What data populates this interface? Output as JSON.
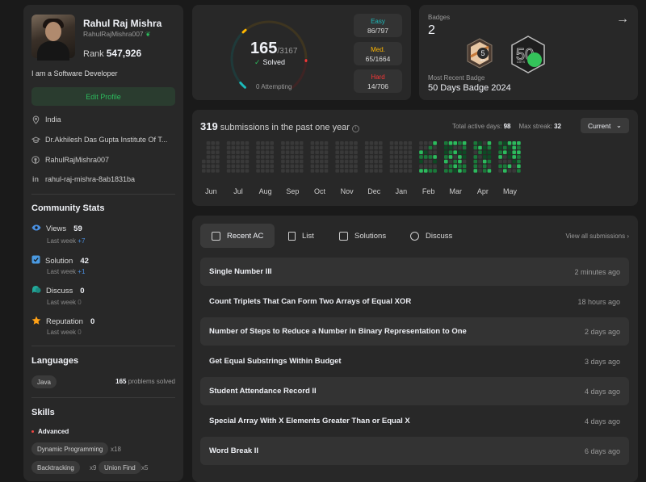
{
  "profile": {
    "name": "Rahul Raj Mishra",
    "handle": "RahulRajMishra007",
    "rank_label": "Rank",
    "rank_value": "547,926",
    "bio": "I am a Software Developer",
    "edit_label": "Edit Profile",
    "location": "India",
    "school": "Dr.Akhilesh Das Gupta Institute Of T...",
    "github": "RahulRajMishra007",
    "linkedin": "rahul-raj-mishra-8ab1831ba"
  },
  "community": {
    "title": "Community Stats",
    "views": {
      "label": "Views",
      "value": "59",
      "sub": "Last week",
      "delta": "+7"
    },
    "solution": {
      "label": "Solution",
      "value": "42",
      "sub": "Last week",
      "delta": "+1"
    },
    "discuss": {
      "label": "Discuss",
      "value": "0",
      "sub": "Last week",
      "delta": "0"
    },
    "reputation": {
      "label": "Reputation",
      "value": "0",
      "sub": "Last week",
      "delta": "0"
    }
  },
  "languages": {
    "title": "Languages",
    "items": [
      {
        "name": "Java",
        "count": "165",
        "suffix": "problems solved"
      }
    ]
  },
  "skills": {
    "title": "Skills",
    "level": "Advanced",
    "items": [
      {
        "name": "Dynamic Programming",
        "count": "x18"
      },
      {
        "name": "Backtracking",
        "count": "x9"
      },
      {
        "name": "Union Find",
        "count": "x5"
      }
    ]
  },
  "solved": {
    "count": "165",
    "total": "/3167",
    "label": "Solved",
    "attempting": "0 Attempting",
    "easy": {
      "name": "Easy",
      "value": "86/797"
    },
    "medium": {
      "name": "Med.",
      "value": "65/1664"
    },
    "hard": {
      "name": "Hard",
      "value": "14/706"
    }
  },
  "badges": {
    "title": "Badges",
    "count": "2",
    "recent_label": "Most Recent Badge",
    "recent_name": "50 Days Badge 2024",
    "badge1": {
      "text_big": "5",
      "text_small": "MAY"
    },
    "badge2": {
      "text_big": "50",
      "text_small": "DAYS"
    }
  },
  "calendar": {
    "count": "319",
    "text": "submissions in the past one year",
    "active_label": "Total active days:",
    "active_value": "98",
    "streak_label": "Max streak:",
    "streak_value": "32",
    "select": "Current",
    "months": [
      "Jun",
      "Jul",
      "Aug",
      "Sep",
      "Oct",
      "Nov",
      "Dec",
      "Jan",
      "Feb",
      "Mar",
      "Apr",
      "May"
    ]
  },
  "recent": {
    "tabs": [
      "Recent AC",
      "List",
      "Solutions",
      "Discuss"
    ],
    "view_all": "View all submissions",
    "items": [
      {
        "title": "Single Number III",
        "ago": "2 minutes ago"
      },
      {
        "title": "Count Triplets That Can Form Two Arrays of Equal XOR",
        "ago": "18 hours ago"
      },
      {
        "title": "Number of Steps to Reduce a Number in Binary Representation to One",
        "ago": "2 days ago"
      },
      {
        "title": "Get Equal Substrings Within Budget",
        "ago": "3 days ago"
      },
      {
        "title": "Student Attendance Record II",
        "ago": "4 days ago"
      },
      {
        "title": "Special Array With X Elements Greater Than or Equal X",
        "ago": "4 days ago"
      },
      {
        "title": "Word Break II",
        "ago": "6 days ago"
      }
    ]
  },
  "colors": {
    "easy": "#1cbaba",
    "medium": "#ffb700",
    "hard": "#f63737",
    "accent": "#2cbb5d"
  }
}
